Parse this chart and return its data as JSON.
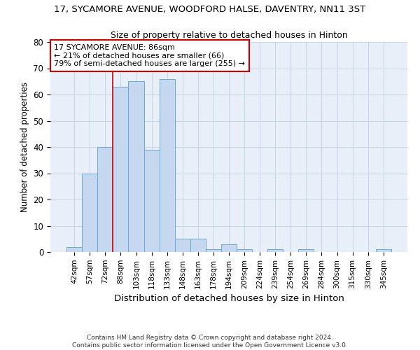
{
  "title": "17, SYCAMORE AVENUE, WOODFORD HALSE, DAVENTRY, NN11 3ST",
  "subtitle": "Size of property relative to detached houses in Hinton",
  "xlabel": "Distribution of detached houses by size in Hinton",
  "ylabel": "Number of detached properties",
  "property_label": "17 SYCAMORE AVENUE: 86sqm",
  "smaller_pct": "21%",
  "smaller_count": 66,
  "larger_pct": "79%",
  "larger_count": 255,
  "bin_labels": [
    "42sqm",
    "57sqm",
    "72sqm",
    "88sqm",
    "103sqm",
    "118sqm",
    "133sqm",
    "148sqm",
    "163sqm",
    "178sqm",
    "194sqm",
    "209sqm",
    "224sqm",
    "239sqm",
    "254sqm",
    "269sqm",
    "284sqm",
    "300sqm",
    "315sqm",
    "330sqm",
    "345sqm"
  ],
  "bar_values": [
    2,
    30,
    40,
    63,
    65,
    39,
    66,
    5,
    5,
    1,
    3,
    1,
    0,
    1,
    0,
    1,
    0,
    0,
    0,
    0,
    1
  ],
  "bar_color": "#c5d8f0",
  "bar_edge_color": "#6aaad4",
  "vline_color": "#cc0000",
  "box_color": "#cc0000",
  "ylim": [
    0,
    80
  ],
  "yticks": [
    0,
    10,
    20,
    30,
    40,
    50,
    60,
    70,
    80
  ],
  "grid_color": "#c8d8e8",
  "bg_color": "#e8eff8",
  "footer": "Contains HM Land Registry data © Crown copyright and database right 2024.\nContains public sector information licensed under the Open Government Licence v3.0."
}
